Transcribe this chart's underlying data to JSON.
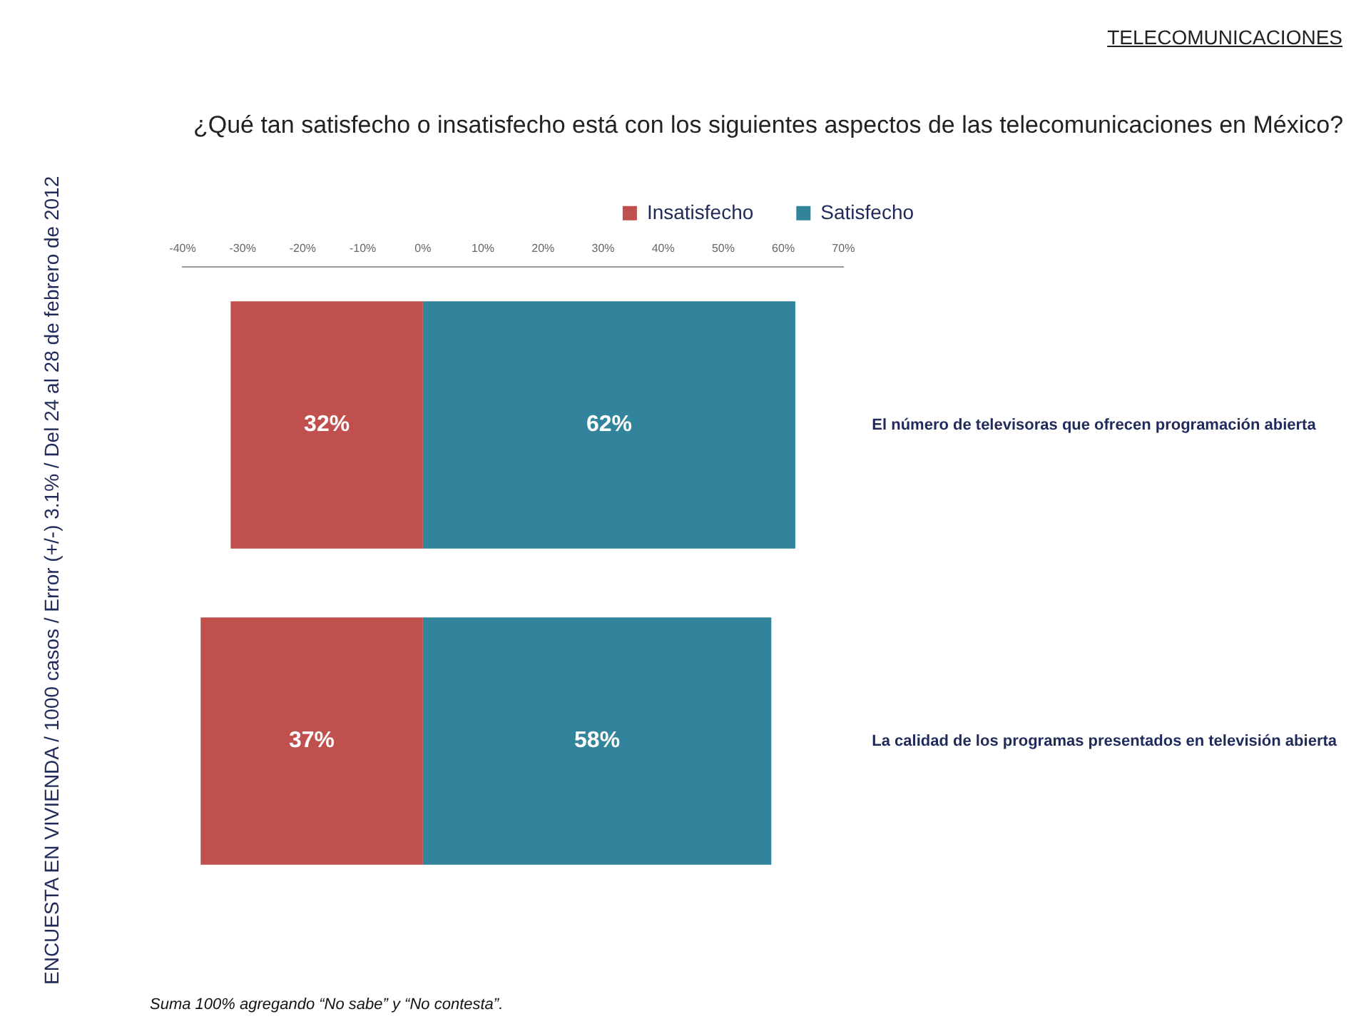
{
  "chart_data": {
    "type": "bar",
    "orientation": "horizontal",
    "title": "¿Qué tan satisfecho o insatisfecho está con los siguientes aspectos de las telecomunicaciones en México?",
    "categories": [
      "El número de televisoras que ofrecen programación abierta",
      "La calidad de los programas presentados en televisión abierta"
    ],
    "series": [
      {
        "name": "Insatisfecho",
        "color": "#c0504d",
        "values": [
          32,
          37
        ],
        "base": [
          -32,
          -37
        ],
        "value_labels": [
          "32%",
          "37%"
        ]
      },
      {
        "name": "Satisfecho",
        "color": "#31849b",
        "values": [
          62,
          58
        ],
        "base": [
          0,
          0
        ],
        "value_labels": [
          "62%",
          "58%"
        ]
      }
    ],
    "xlim": [
      -40,
      70
    ],
    "xticks": [
      {
        "value": -40,
        "label": "-40%"
      },
      {
        "value": -30,
        "label": "-30%"
      },
      {
        "value": -20,
        "label": "-20%"
      },
      {
        "value": -10,
        "label": "-10%"
      },
      {
        "value": 0,
        "label": "0%"
      },
      {
        "value": 10,
        "label": "10%"
      },
      {
        "value": 20,
        "label": "20%"
      },
      {
        "value": 30,
        "label": "30%"
      },
      {
        "value": 40,
        "label": "40%"
      },
      {
        "value": 50,
        "label": "50%"
      },
      {
        "value": 60,
        "label": "60%"
      },
      {
        "value": 70,
        "label": "70%"
      }
    ],
    "grid": false,
    "legend": "top",
    "annotations": [
      "TELECOMUNICACIONES",
      "ENCUESTA EN VIVIENDA / 1000 casos / Error (+/-) 3.1% / Del 24 al 28 de febrero de 2012",
      "Suma 100%  agregando “No sabe” y “No contesta”."
    ]
  }
}
